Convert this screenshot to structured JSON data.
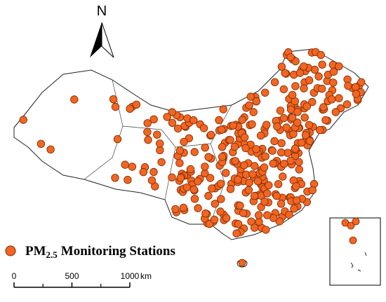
{
  "north_label": "N",
  "legend": {
    "prefix": "PM",
    "subscript": "2.5",
    "text": "Monitoring Stations"
  },
  "scale_bar": {
    "ticks": [
      0,
      500,
      1000
    ],
    "unit": "km"
  }
}
